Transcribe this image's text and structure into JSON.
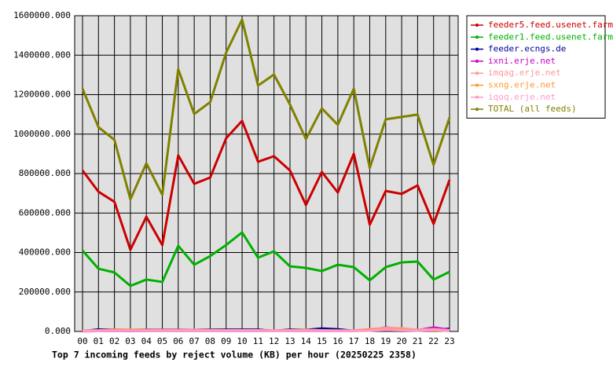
{
  "chart_data": {
    "type": "line",
    "title": "Top 7 incoming feeds by reject volume (KB) per hour (20250225 2358)",
    "categories": [
      "00",
      "01",
      "02",
      "03",
      "04",
      "05",
      "06",
      "07",
      "08",
      "09",
      "10",
      "11",
      "12",
      "13",
      "14",
      "15",
      "16",
      "17",
      "18",
      "19",
      "20",
      "21",
      "22",
      "23"
    ],
    "ylim": [
      0,
      1600000
    ],
    "yticks": [
      {
        "value": 0,
        "label": "0.000"
      },
      {
        "value": 200000,
        "label": "200000.000"
      },
      {
        "value": 400000,
        "label": "400000.000"
      },
      {
        "value": 600000,
        "label": "600000.000"
      },
      {
        "value": 800000,
        "label": "800000.000"
      },
      {
        "value": 1000000,
        "label": "1000000.000"
      },
      {
        "value": 1200000,
        "label": "1200000.000"
      },
      {
        "value": 1400000,
        "label": "1400000.000"
      },
      {
        "value": 1600000,
        "label": "1600000.000"
      }
    ],
    "grid": true,
    "legend": "right",
    "series": [
      {
        "name": "feeder5.feed.usenet.farm",
        "color": "#cc0000",
        "values": [
          816000,
          708000,
          657000,
          414000,
          581000,
          438000,
          892000,
          748000,
          780000,
          979000,
          1067000,
          860000,
          888000,
          816000,
          641000,
          808000,
          704000,
          900000,
          541000,
          712000,
          697000,
          740000,
          545000,
          768000
        ]
      },
      {
        "name": "feeder1.feed.usenet.farm",
        "color": "#00b000",
        "values": [
          410000,
          318000,
          299000,
          231000,
          263000,
          251000,
          434000,
          338000,
          382000,
          438000,
          502000,
          374000,
          406000,
          330000,
          322000,
          306000,
          338000,
          326000,
          259000,
          326000,
          350000,
          354000,
          263000,
          302000
        ]
      },
      {
        "name": "feeder.ecngs.de",
        "color": "#000099",
        "values": [
          2000,
          10000,
          9000,
          8000,
          9000,
          9000,
          9000,
          8000,
          9000,
          9000,
          9000,
          9000,
          3000,
          9000,
          8000,
          15000,
          11000,
          3000,
          9000,
          10000,
          9000,
          8000,
          10000,
          13000
        ]
      },
      {
        "name": "ixni.erje.net",
        "color": "#cc00cc",
        "values": [
          1000,
          2000,
          3000,
          2000,
          3000,
          3000,
          3000,
          3000,
          3000,
          3000,
          3000,
          3000,
          2000,
          2000,
          3000,
          3000,
          3000,
          3000,
          6000,
          20000,
          12000,
          6000,
          20000,
          8000
        ]
      },
      {
        "name": "imqag.erje.net",
        "color": "#ff9999",
        "values": [
          5000,
          6000,
          9000,
          9000,
          8000,
          8000,
          8000,
          8000,
          7000,
          6000,
          6000,
          6000,
          5000,
          6000,
          8000,
          6000,
          5000,
          5000,
          12000,
          18000,
          16000,
          8000,
          12000,
          6000
        ]
      },
      {
        "name": "sxng.erje.net",
        "color": "#ff9933",
        "values": [
          3000,
          3000,
          6000,
          7000,
          5000,
          4000,
          4000,
          4000,
          3000,
          3000,
          3000,
          3000,
          3000,
          3000,
          5000,
          4000,
          3000,
          3000,
          8000,
          10000,
          9000,
          5000,
          6000,
          3000
        ]
      },
      {
        "name": "iqoq.erje.net",
        "color": "#ff99cc",
        "values": [
          2000,
          2000,
          3000,
          3000,
          3000,
          3000,
          3000,
          3000,
          3000,
          3000,
          3000,
          3000,
          2000,
          2000,
          3000,
          3000,
          2000,
          2000,
          4000,
          8000,
          6000,
          4000,
          8000,
          4000
        ]
      },
      {
        "name": "TOTAL (all feeds)",
        "color": "#808000",
        "values": [
          1230000,
          1035000,
          971000,
          669000,
          852000,
          693000,
          1329000,
          1102000,
          1162000,
          1413000,
          1580000,
          1246000,
          1302000,
          1150000,
          975000,
          1130000,
          1047000,
          1230000,
          828000,
          1075000,
          1087000,
          1099000,
          844000,
          1083000
        ]
      }
    ]
  }
}
